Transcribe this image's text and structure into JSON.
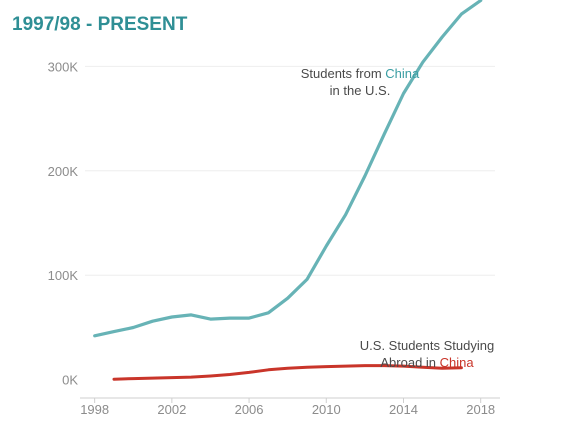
{
  "colors": {
    "title": "#2f8f95",
    "china_line": "#67b3b6",
    "us_line": "#c9352a",
    "accent_text": "#3a9ea3",
    "red_text": "#c9352a"
  },
  "chart_data": {
    "type": "line",
    "title": "1997/98 - PRESENT",
    "xlabel": "",
    "ylabel": "",
    "xlim": [
      1997.5,
      2019
    ],
    "ylim": [
      -7000,
      330000
    ],
    "x_ticks": [
      1998,
      2002,
      2006,
      2010,
      2014,
      2018
    ],
    "x_tick_labels": [
      "1998",
      "2002",
      "2006",
      "2010",
      "2014",
      "2018"
    ],
    "y_ticks": [
      0,
      100000,
      200000,
      300000
    ],
    "y_tick_labels": [
      "0K",
      "100K",
      "200K",
      "300K"
    ],
    "grid": true,
    "legend": "none",
    "series": [
      {
        "name": "Students from China in the U.S.",
        "color": "#67b3b6",
        "x": [
          1998,
          1999,
          2000,
          2001,
          2002,
          2003,
          2004,
          2005,
          2006,
          2007,
          2008,
          2009,
          2010,
          2011,
          2012,
          2013,
          2014,
          2015,
          2016,
          2017,
          2018
        ],
        "y": [
          42000,
          46000,
          50000,
          56000,
          60000,
          62000,
          58000,
          59000,
          59000,
          64000,
          78000,
          96000,
          128000,
          158000,
          195000,
          235000,
          274000,
          304000,
          328000,
          350000,
          363000
        ]
      },
      {
        "name": "U.S. Students Studying Abroad in China",
        "color": "#c9352a",
        "x": [
          1999,
          2000,
          2001,
          2002,
          2003,
          2004,
          2005,
          2006,
          2007,
          2008,
          2009,
          2010,
          2011,
          2012,
          2013,
          2014,
          2015,
          2016,
          2017
        ],
        "y": [
          500,
          1000,
          1500,
          2000,
          2500,
          3500,
          5000,
          7000,
          9500,
          11000,
          12000,
          12500,
          13000,
          13500,
          13500,
          13000,
          12000,
          11000,
          11500
        ]
      }
    ],
    "annotations": [
      {
        "lines": [
          [
            {
              "text": "Students from ",
              "color": ""
            },
            {
              "text": "China",
              "color": "#3a9ea3"
            }
          ],
          [
            {
              "text": "in the U.S.",
              "color": ""
            }
          ]
        ]
      },
      {
        "lines": [
          [
            {
              "text": "U.S. Students Studying",
              "color": ""
            }
          ],
          [
            {
              "text": "Abroad in ",
              "color": ""
            },
            {
              "text": "China",
              "color": "#c9352a"
            }
          ]
        ]
      }
    ]
  }
}
